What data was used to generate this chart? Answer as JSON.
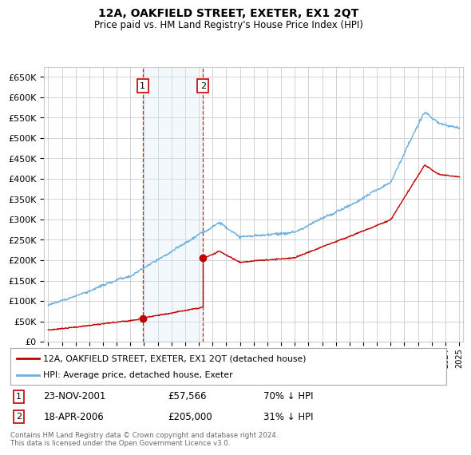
{
  "title": "12A, OAKFIELD STREET, EXETER, EX1 2QT",
  "subtitle": "Price paid vs. HM Land Registry's House Price Index (HPI)",
  "legend_line1": "12A, OAKFIELD STREET, EXETER, EX1 2QT (detached house)",
  "legend_line2": "HPI: Average price, detached house, Exeter",
  "transaction1_date": "23-NOV-2001",
  "transaction1_price": 57566,
  "transaction1_year": 2001.9,
  "transaction2_date": "18-APR-2006",
  "transaction2_price": 205000,
  "transaction2_year": 2006.3,
  "footer": "Contains HM Land Registry data © Crown copyright and database right 2024.\nThis data is licensed under the Open Government Licence v3.0.",
  "hpi_color": "#6ab0e0",
  "price_color": "#c00000",
  "background_color": "#ffffff",
  "grid_color": "#cccccc",
  "shading_color": "#daeaf7",
  "ylim": [
    0,
    675000
  ],
  "yticks": [
    0,
    50000,
    100000,
    150000,
    200000,
    250000,
    300000,
    350000,
    400000,
    450000,
    500000,
    550000,
    600000,
    650000
  ],
  "xlim_start": 1994.7,
  "xlim_end": 2025.3,
  "hpi_start_year": 1995,
  "hpi_end_year": 2025,
  "price_start_year": 1995,
  "price_end_year": 2025
}
